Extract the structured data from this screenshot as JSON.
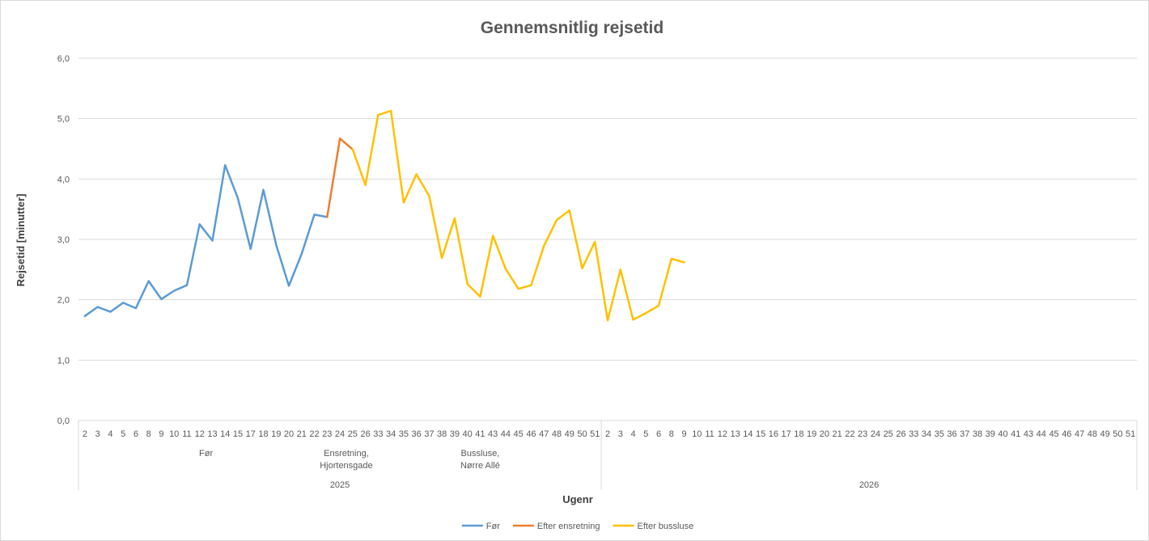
{
  "chart_data": {
    "type": "line",
    "title": "Gennemsnitlig rejsetid",
    "xlabel": "Ugenr",
    "ylabel": "Rejsetid [minutter]",
    "ylim": [
      0,
      6
    ],
    "yticks": [
      "0,0",
      "1,0",
      "2,0",
      "3,0",
      "4,0",
      "5,0",
      "6,0"
    ],
    "grid": true,
    "legend_position": "bottom",
    "years": [
      {
        "label": "2025",
        "weeks": [
          "2",
          "3",
          "4",
          "5",
          "6",
          "8",
          "9",
          "10",
          "11",
          "12",
          "13",
          "14",
          "15",
          "17",
          "18",
          "19",
          "20",
          "21",
          "22",
          "23",
          "24",
          "25",
          "26",
          "33",
          "34",
          "35",
          "36",
          "37",
          "38",
          "39",
          "40",
          "41",
          "43",
          "44",
          "45",
          "46",
          "47",
          "48",
          "49",
          "50",
          "51"
        ]
      },
      {
        "label": "2026",
        "weeks": [
          "2",
          "3",
          "4",
          "5",
          "6",
          "8",
          "9",
          "10",
          "11",
          "12",
          "13",
          "14",
          "15",
          "16",
          "17",
          "18",
          "19",
          "20",
          "21",
          "22",
          "23",
          "24",
          "25",
          "26",
          "33",
          "34",
          "35",
          "36",
          "37",
          "38",
          "39",
          "40",
          "41",
          "43",
          "44",
          "45",
          "46",
          "47",
          "48",
          "49",
          "50",
          "51"
        ]
      }
    ],
    "groups": [
      {
        "label": "Før",
        "from": 0,
        "to": 19
      },
      {
        "label": "Ensretning,\nHjortensgade",
        "from": 20,
        "to": 21
      },
      {
        "label": "Bussluse,\nNørre Allé",
        "from": 22,
        "to": 40
      }
    ],
    "series": [
      {
        "name": "Før",
        "color": "#5b9bd5",
        "start": 0,
        "values": [
          1.73,
          1.88,
          1.8,
          1.95,
          1.86,
          2.31,
          2.01,
          2.15,
          2.24,
          3.25,
          2.98,
          4.23,
          3.68,
          2.84,
          3.82,
          2.91,
          2.23,
          2.76,
          3.41,
          3.37
        ]
      },
      {
        "name": "Efter ensretning",
        "color": "#ed7d31",
        "start": 19,
        "values": [
          3.37,
          4.67,
          4.49
        ]
      },
      {
        "name": "Efter bussluse",
        "color": "#ffc000",
        "start": 21,
        "values": [
          4.49,
          3.9,
          5.06,
          5.13,
          3.61,
          4.08,
          3.72,
          2.69,
          3.35,
          2.26,
          2.05,
          3.06,
          2.51,
          2.18,
          2.24,
          2.89,
          3.32,
          3.48,
          2.52,
          2.96,
          1.66,
          2.5,
          1.67,
          1.78,
          1.9,
          2.68,
          2.62
        ]
      }
    ]
  }
}
